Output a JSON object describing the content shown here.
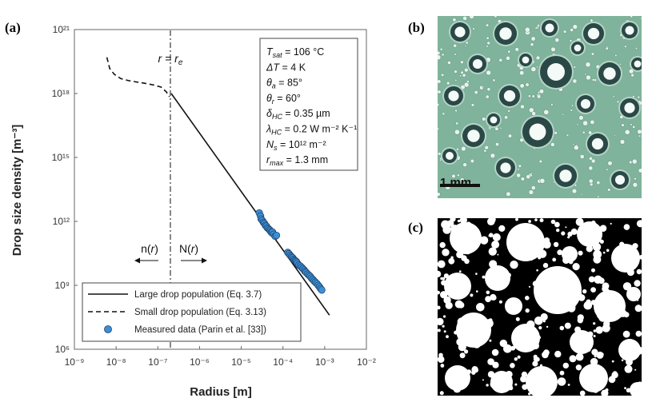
{
  "panels": {
    "a": "(a)",
    "b": "(b)",
    "c": "(c)"
  },
  "chart_data": {
    "type": "line",
    "xlabel": "Radius [m]",
    "ylabel": "Drop size density [m⁻³]",
    "x_scale": "log",
    "y_scale": "log",
    "xlim": [
      1e-09,
      0.01
    ],
    "ylim": [
      1000000.0,
      1e+21
    ],
    "x_ticks": [
      "10⁻⁹",
      "10⁻⁸",
      "10⁻⁷",
      "10⁻⁶",
      "10⁻⁵",
      "10⁻⁴",
      "10⁻³",
      "10⁻²"
    ],
    "y_ticks": [
      "10⁶",
      "10⁹",
      "10¹²",
      "10¹⁵",
      "10¹⁸",
      "10²¹"
    ],
    "series": [
      {
        "name": "Large drop population (Eq. 3.7)",
        "style": "solid",
        "x": [
          2.1e-07,
          0.0013
        ],
        "y": [
          1e+18,
          40000000.0
        ]
      },
      {
        "name": "Small drop population (Eq. 3.13)",
        "style": "dashed",
        "x": [
          6e-09,
          7e-09,
          9e-09,
          1.3e-08,
          2e-08,
          3e-08,
          5e-08,
          8e-08,
          1.2e-07,
          1.6e-07,
          1.9e-07
        ],
        "y": [
          5e+19,
          1.5e+19,
          8e+18,
          5e+18,
          4e+18,
          3.5e+18,
          3e+18,
          2.5e+18,
          2e+18,
          1.2e+18,
          7e+17
        ]
      },
      {
        "name": "Measured data (Parin et al. [33])",
        "style": "markers",
        "color": "#3d8fd4",
        "x": [
          2.7e-05,
          2.9e-05,
          3e-05,
          3.2e-05,
          3.4e-05,
          3.6e-05,
          3.8e-05,
          4e-05,
          4.2e-05,
          4.5e-05,
          4.8e-05,
          5e-05,
          5.3e-05,
          5.6e-05,
          6e-05,
          6.5e-05,
          7e-05,
          0.00013,
          0.00014,
          0.00015,
          0.00016,
          0.00017,
          0.00018,
          0.00019,
          0.0002,
          0.00021,
          0.00022,
          0.00024,
          0.00026,
          0.00028,
          0.0003,
          0.00032,
          0.00034,
          0.00036,
          0.00039,
          0.00042,
          0.00045,
          0.00048,
          0.00052,
          0.00056,
          0.0006,
          0.00065,
          0.0007,
          0.00075,
          0.0008,
          0.00085
        ],
        "y": [
          2500000000000.0,
          1800000000000.0,
          1300000000000.0,
          1100000000000.0,
          900000000000.0,
          800000000000.0,
          650000000000.0,
          600000000000.0,
          500000000000.0,
          450000000000.0,
          400000000000.0,
          350000000000.0,
          300000000000.0,
          320000000000.0,
          250000000000.0,
          200000000000.0,
          220000000000.0,
          35000000000.0,
          30000000000.0,
          25000000000.0,
          22000000000.0,
          20000000000.0,
          17000000000.0,
          15000000000.0,
          14000000000.0,
          13000000000.0,
          11000000000.0,
          9000000000.0,
          8000000000.0,
          7000000000.0,
          6000000000.0,
          5200000000.0,
          4500000000.0,
          4000000000.0,
          3400000000.0,
          3000000000.0,
          2600000000.0,
          2200000000.0,
          1900000000.0,
          1600000000.0,
          1400000000.0,
          1200000000.0,
          1000000000.0,
          850000000.0,
          700000000.0,
          600000000.0
        ]
      }
    ],
    "annotations": {
      "re_label": "r = r",
      "re_sub": "e",
      "re_x": 2e-07,
      "n_label_pre": "n(",
      "n_label_var": "r",
      "n_label_post": ")",
      "N_label_pre": "N(",
      "N_label_var": "r",
      "N_label_post": ")"
    },
    "params": [
      {
        "sym": "T",
        "sub": "sat",
        "val": " = 106 °C"
      },
      {
        "sym": "ΔT",
        "sub": "",
        "val": " = 4 K"
      },
      {
        "sym": "θ",
        "sub": "a",
        "val": " = 85°"
      },
      {
        "sym": "θ",
        "sub": "r",
        "val": " = 60°"
      },
      {
        "sym": "δ",
        "sub": "HC",
        "val": " = 0.35 µm"
      },
      {
        "sym": "λ",
        "sub": "HC",
        "val": " = 0.2 W m⁻² K⁻¹"
      },
      {
        "sym": "N",
        "sub": "s",
        "val": " = 10¹² m⁻²"
      },
      {
        "sym": "r",
        "sub": "max",
        "val": " = 1.3 mm"
      }
    ],
    "legend_placement": "bottom-left"
  },
  "photo_b": {
    "scale_label": "1 mm"
  },
  "colors": {
    "marker": "#3d8fd4",
    "photo_bg": "#7fb39b",
    "drop_dark": "#1f3a3a"
  }
}
